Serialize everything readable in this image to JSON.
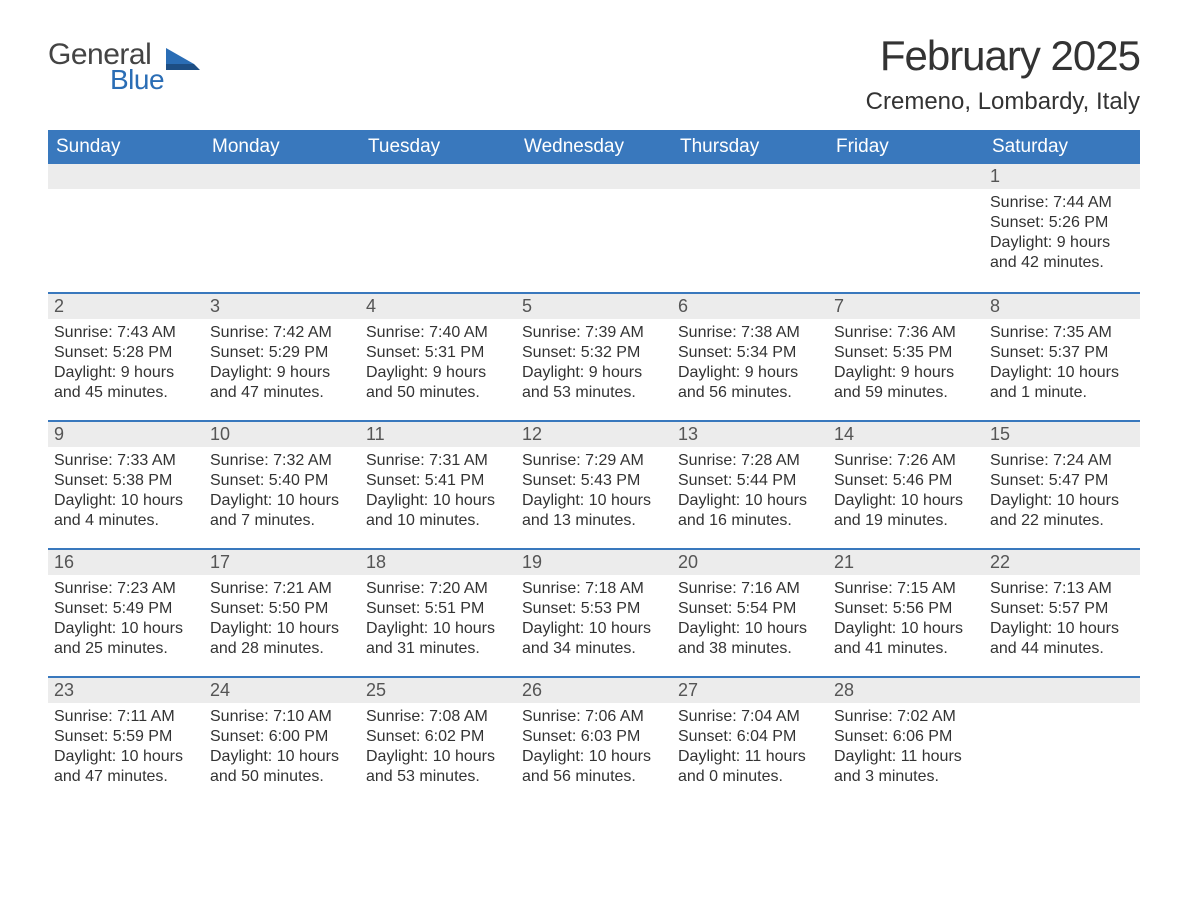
{
  "brand": {
    "word1": "General",
    "word2": "Blue",
    "icon_color": "#2a6db5"
  },
  "header": {
    "title": "February 2025",
    "location": "Cremeno, Lombardy, Italy"
  },
  "style": {
    "header_bg": "#3978bd",
    "header_fg": "#ffffff",
    "daybar_bg": "#ececec",
    "row_border_color": "#3978bd",
    "body_bg": "#ffffff",
    "text_color": "#333333",
    "title_fontsize": 42,
    "location_fontsize": 24,
    "dayheader_fontsize": 19,
    "body_fontsize": 16
  },
  "day_headers": [
    "Sunday",
    "Monday",
    "Tuesday",
    "Wednesday",
    "Thursday",
    "Friday",
    "Saturday"
  ],
  "labels": {
    "sunrise": "Sunrise:",
    "sunset": "Sunset:",
    "daylight": "Daylight:"
  },
  "weeks": [
    [
      null,
      null,
      null,
      null,
      null,
      null,
      {
        "n": "1",
        "sunrise": "7:44 AM",
        "sunset": "5:26 PM",
        "daylight": "9 hours and 42 minutes."
      }
    ],
    [
      {
        "n": "2",
        "sunrise": "7:43 AM",
        "sunset": "5:28 PM",
        "daylight": "9 hours and 45 minutes."
      },
      {
        "n": "3",
        "sunrise": "7:42 AM",
        "sunset": "5:29 PM",
        "daylight": "9 hours and 47 minutes."
      },
      {
        "n": "4",
        "sunrise": "7:40 AM",
        "sunset": "5:31 PM",
        "daylight": "9 hours and 50 minutes."
      },
      {
        "n": "5",
        "sunrise": "7:39 AM",
        "sunset": "5:32 PM",
        "daylight": "9 hours and 53 minutes."
      },
      {
        "n": "6",
        "sunrise": "7:38 AM",
        "sunset": "5:34 PM",
        "daylight": "9 hours and 56 minutes."
      },
      {
        "n": "7",
        "sunrise": "7:36 AM",
        "sunset": "5:35 PM",
        "daylight": "9 hours and 59 minutes."
      },
      {
        "n": "8",
        "sunrise": "7:35 AM",
        "sunset": "5:37 PM",
        "daylight": "10 hours and 1 minute."
      }
    ],
    [
      {
        "n": "9",
        "sunrise": "7:33 AM",
        "sunset": "5:38 PM",
        "daylight": "10 hours and 4 minutes."
      },
      {
        "n": "10",
        "sunrise": "7:32 AM",
        "sunset": "5:40 PM",
        "daylight": "10 hours and 7 minutes."
      },
      {
        "n": "11",
        "sunrise": "7:31 AM",
        "sunset": "5:41 PM",
        "daylight": "10 hours and 10 minutes."
      },
      {
        "n": "12",
        "sunrise": "7:29 AM",
        "sunset": "5:43 PM",
        "daylight": "10 hours and 13 minutes."
      },
      {
        "n": "13",
        "sunrise": "7:28 AM",
        "sunset": "5:44 PM",
        "daylight": "10 hours and 16 minutes."
      },
      {
        "n": "14",
        "sunrise": "7:26 AM",
        "sunset": "5:46 PM",
        "daylight": "10 hours and 19 minutes."
      },
      {
        "n": "15",
        "sunrise": "7:24 AM",
        "sunset": "5:47 PM",
        "daylight": "10 hours and 22 minutes."
      }
    ],
    [
      {
        "n": "16",
        "sunrise": "7:23 AM",
        "sunset": "5:49 PM",
        "daylight": "10 hours and 25 minutes."
      },
      {
        "n": "17",
        "sunrise": "7:21 AM",
        "sunset": "5:50 PM",
        "daylight": "10 hours and 28 minutes."
      },
      {
        "n": "18",
        "sunrise": "7:20 AM",
        "sunset": "5:51 PM",
        "daylight": "10 hours and 31 minutes."
      },
      {
        "n": "19",
        "sunrise": "7:18 AM",
        "sunset": "5:53 PM",
        "daylight": "10 hours and 34 minutes."
      },
      {
        "n": "20",
        "sunrise": "7:16 AM",
        "sunset": "5:54 PM",
        "daylight": "10 hours and 38 minutes."
      },
      {
        "n": "21",
        "sunrise": "7:15 AM",
        "sunset": "5:56 PM",
        "daylight": "10 hours and 41 minutes."
      },
      {
        "n": "22",
        "sunrise": "7:13 AM",
        "sunset": "5:57 PM",
        "daylight": "10 hours and 44 minutes."
      }
    ],
    [
      {
        "n": "23",
        "sunrise": "7:11 AM",
        "sunset": "5:59 PM",
        "daylight": "10 hours and 47 minutes."
      },
      {
        "n": "24",
        "sunrise": "7:10 AM",
        "sunset": "6:00 PM",
        "daylight": "10 hours and 50 minutes."
      },
      {
        "n": "25",
        "sunrise": "7:08 AM",
        "sunset": "6:02 PM",
        "daylight": "10 hours and 53 minutes."
      },
      {
        "n": "26",
        "sunrise": "7:06 AM",
        "sunset": "6:03 PM",
        "daylight": "10 hours and 56 minutes."
      },
      {
        "n": "27",
        "sunrise": "7:04 AM",
        "sunset": "6:04 PM",
        "daylight": "11 hours and 0 minutes."
      },
      {
        "n": "28",
        "sunrise": "7:02 AM",
        "sunset": "6:06 PM",
        "daylight": "11 hours and 3 minutes."
      },
      null
    ]
  ]
}
